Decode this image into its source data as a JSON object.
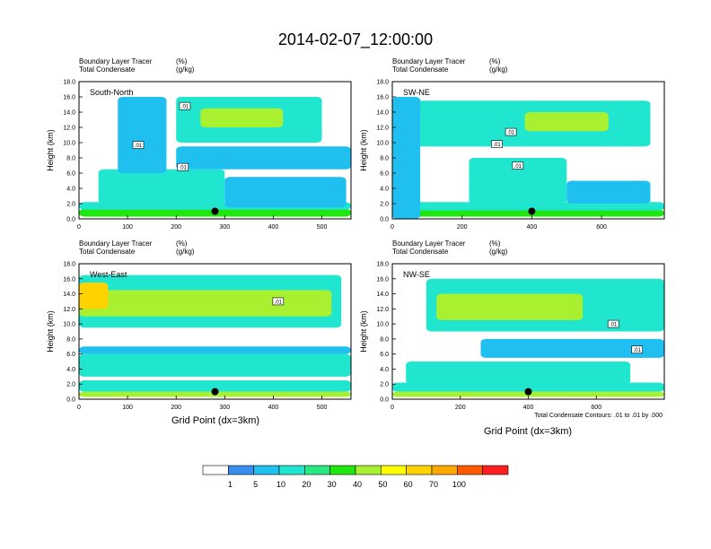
{
  "title": "2014-02-07_12:00:00",
  "field_labels": {
    "line1": "Boundary Layer Tracer",
    "unit1": "(%)",
    "line2": "Total Condensate",
    "unit2": "(g/kg)"
  },
  "ylabel": "Height (km)",
  "xlabel": "Grid Point (dx=3km)",
  "contour_note": "Total Condensate Contours: .01 to .01 by .000",
  "contour_label": ".01",
  "colorbar": {
    "colors": [
      "#ffffff",
      "#3a8ef0",
      "#1fc0f0",
      "#20e6d0",
      "#28e882",
      "#1ee80e",
      "#a8f030",
      "#ffff00",
      "#ffd200",
      "#ffa800",
      "#ff5a00",
      "#ff1e1e"
    ],
    "labels": [
      "1",
      "5",
      "10",
      "20",
      "30",
      "40",
      "50",
      "60",
      "70",
      "100"
    ]
  },
  "chart_data": [
    {
      "type": "heatmap",
      "panel": "South-North",
      "title": "South-North",
      "xlim": [
        0,
        560
      ],
      "ylim": [
        0,
        18
      ],
      "xticks": [
        "0",
        "100",
        "200",
        "300",
        "400",
        "500"
      ],
      "xtick_values": [
        0,
        100,
        200,
        300,
        400,
        500
      ],
      "yticks": [
        "0.0",
        "2.0",
        "4.0",
        "6.0",
        "8.0",
        "10.0",
        "12.0",
        "14.0",
        "16.0",
        "18.0"
      ],
      "marker": {
        "x": 280,
        "y": 1.0
      },
      "contour_labels": [
        {
          "x": 122,
          "y": 9.7
        },
        {
          "x": 218,
          "y": 14.8
        },
        {
          "x": 214,
          "y": 6.8
        }
      ],
      "fields": [
        {
          "level": 5,
          "x0": 0,
          "x1": 560,
          "y0": 0.3,
          "y1": 1.3
        },
        {
          "level": 3,
          "x0": 0,
          "x1": 560,
          "y0": 1.2,
          "y1": 2.2
        },
        {
          "level": 3,
          "x0": 40,
          "x1": 300,
          "y0": 2.0,
          "y1": 6.5
        },
        {
          "level": 2,
          "x0": 300,
          "x1": 550,
          "y0": 1.5,
          "y1": 5.5
        },
        {
          "level": 3,
          "x0": 200,
          "x1": 500,
          "y0": 10.0,
          "y1": 16.0
        },
        {
          "level": 6,
          "x0": 250,
          "x1": 420,
          "y0": 12.0,
          "y1": 14.5
        },
        {
          "level": 2,
          "x0": 80,
          "x1": 180,
          "y0": 6.0,
          "y1": 16.0
        },
        {
          "level": 2,
          "x0": 200,
          "x1": 560,
          "y0": 6.5,
          "y1": 9.5
        }
      ]
    },
    {
      "type": "heatmap",
      "panel": "SW-NE",
      "title": "SW-NE",
      "xlim": [
        0,
        780
      ],
      "ylim": [
        0,
        18
      ],
      "xticks": [
        "0",
        "200",
        "400",
        "600"
      ],
      "xtick_values": [
        0,
        200,
        400,
        600
      ],
      "yticks": [
        "0.0",
        "2.0",
        "4.0",
        "6.0",
        "8.0",
        "10.0",
        "12.0",
        "14.0",
        "16.0",
        "18.0"
      ],
      "marker": {
        "x": 400,
        "y": 1.0
      },
      "contour_labels": [
        {
          "x": 300,
          "y": 9.8
        },
        {
          "x": 340,
          "y": 11.4
        },
        {
          "x": 360,
          "y": 7.0
        }
      ],
      "fields": [
        {
          "level": 5,
          "x0": 0,
          "x1": 780,
          "y0": 0.3,
          "y1": 1.2
        },
        {
          "level": 3,
          "x0": 0,
          "x1": 780,
          "y0": 1.1,
          "y1": 2.2
        },
        {
          "level": 3,
          "x0": 220,
          "x1": 500,
          "y0": 2.0,
          "y1": 8.0
        },
        {
          "level": 2,
          "x0": 500,
          "x1": 740,
          "y0": 2.0,
          "y1": 5.0
        },
        {
          "level": 3,
          "x0": 60,
          "x1": 740,
          "y0": 9.5,
          "y1": 15.5
        },
        {
          "level": 6,
          "x0": 380,
          "x1": 620,
          "y0": 11.5,
          "y1": 14.0
        },
        {
          "level": 2,
          "x0": 0,
          "x1": 80,
          "y0": 0,
          "y1": 16.0
        }
      ]
    },
    {
      "type": "heatmap",
      "panel": "West-East",
      "title": "West-East",
      "xlim": [
        0,
        560
      ],
      "ylim": [
        0,
        18
      ],
      "xticks": [
        "0",
        "100",
        "200",
        "300",
        "400",
        "500"
      ],
      "xtick_values": [
        0,
        100,
        200,
        300,
        400,
        500
      ],
      "yticks": [
        "0.0",
        "2.0",
        "4.0",
        "6.0",
        "8.0",
        "10.0",
        "12.0",
        "14.0",
        "16.0",
        "18.0"
      ],
      "marker": {
        "x": 280,
        "y": 1.0
      },
      "contour_labels": [
        {
          "x": 410,
          "y": 13.0
        }
      ],
      "fields": [
        {
          "level": 6,
          "x0": 0,
          "x1": 560,
          "y0": 0.3,
          "y1": 1.0
        },
        {
          "level": 3,
          "x0": 0,
          "x1": 560,
          "y0": 1.0,
          "y1": 2.5
        },
        {
          "level": 3,
          "x0": 0,
          "x1": 560,
          "y0": 3.0,
          "y1": 6.0
        },
        {
          "level": 2,
          "x0": 0,
          "x1": 560,
          "y0": 6.0,
          "y1": 7.0
        },
        {
          "level": 3,
          "x0": 0,
          "x1": 540,
          "y0": 9.5,
          "y1": 16.5
        },
        {
          "level": 6,
          "x0": 0,
          "x1": 520,
          "y0": 11.0,
          "y1": 14.5
        },
        {
          "level": 8,
          "x0": 0,
          "x1": 60,
          "y0": 12.0,
          "y1": 15.5
        }
      ]
    },
    {
      "type": "heatmap",
      "panel": "NW-SE",
      "title": "NW-SE",
      "xlim": [
        0,
        800
      ],
      "ylim": [
        0,
        18
      ],
      "xticks": [
        "0",
        "200",
        "400",
        "600"
      ],
      "xtick_values": [
        0,
        200,
        400,
        600
      ],
      "yticks": [
        "0.0",
        "2.0",
        "4.0",
        "6.0",
        "8.0",
        "10.0",
        "12.0",
        "14.0",
        "16.0",
        "18.0"
      ],
      "marker": {
        "x": 400,
        "y": 1.0
      },
      "contour_labels": [
        {
          "x": 650,
          "y": 10.0
        },
        {
          "x": 720,
          "y": 6.6
        }
      ],
      "fields": [
        {
          "level": 6,
          "x0": 0,
          "x1": 800,
          "y0": 0.3,
          "y1": 1.0
        },
        {
          "level": 3,
          "x0": 0,
          "x1": 800,
          "y0": 1.0,
          "y1": 2.2
        },
        {
          "level": 3,
          "x0": 40,
          "x1": 700,
          "y0": 2.0,
          "y1": 5.0
        },
        {
          "level": 3,
          "x0": 100,
          "x1": 800,
          "y0": 9.0,
          "y1": 16.0
        },
        {
          "level": 6,
          "x0": 130,
          "x1": 560,
          "y0": 10.5,
          "y1": 14.0
        },
        {
          "level": 2,
          "x0": 260,
          "x1": 800,
          "y0": 5.5,
          "y1": 8.0
        }
      ]
    }
  ]
}
